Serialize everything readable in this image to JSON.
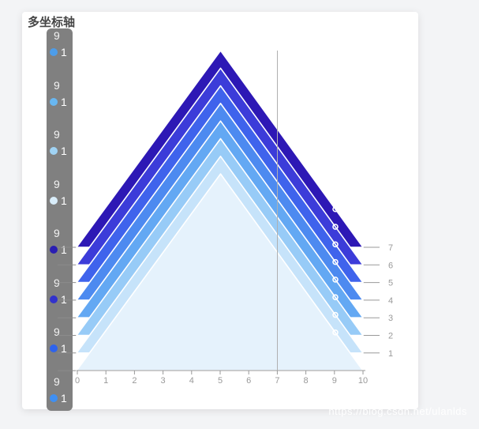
{
  "page": {
    "watermark": "https://blog.csdn.net/ulanlds"
  },
  "title": "多坐标轴",
  "legend": {
    "axis_max_label": "9",
    "items": [
      {
        "name": "1",
        "color": "#4d9de9"
      },
      {
        "name": "1",
        "color": "#68b7f1"
      },
      {
        "name": "1",
        "color": "#a0d3f4"
      },
      {
        "name": "1",
        "color": "#d9edfa"
      },
      {
        "name": "1",
        "color": "#2a1eb2"
      },
      {
        "name": "1",
        "color": "#3232cc"
      },
      {
        "name": "1",
        "color": "#2e63ec"
      },
      {
        "name": "1",
        "color": "#3f8ff2"
      }
    ]
  },
  "chart_data": {
    "type": "area",
    "title": "多坐标轴",
    "x_ticks": [
      "0",
      "1",
      "2",
      "3",
      "4",
      "5",
      "6",
      "7",
      "8",
      "9",
      "10"
    ],
    "xlim": [
      0,
      10
    ],
    "y_max": 9,
    "grid_count": 8,
    "right_axis_labels": [
      "7",
      "6",
      "5",
      "4",
      "3",
      "2",
      "1"
    ],
    "axis_pointer_x": 7,
    "symbol_visible_at_x": 9,
    "series": [
      {
        "name": "1",
        "color": "#2d18b5",
        "data": [
          [
            0,
            0
          ],
          [
            5,
            9
          ],
          [
            10,
            0
          ]
        ]
      },
      {
        "name": "1",
        "color": "#3c3cd9",
        "data": [
          [
            0,
            0
          ],
          [
            5,
            9
          ],
          [
            10,
            0
          ]
        ]
      },
      {
        "name": "1",
        "color": "#3f63ec",
        "data": [
          [
            0,
            0
          ],
          [
            5,
            9
          ],
          [
            10,
            0
          ]
        ]
      },
      {
        "name": "1",
        "color": "#4d8af0",
        "data": [
          [
            0,
            0
          ],
          [
            5,
            9
          ],
          [
            10,
            0
          ]
        ]
      },
      {
        "name": "1",
        "color": "#63a8f3",
        "data": [
          [
            0,
            0
          ],
          [
            5,
            9
          ],
          [
            10,
            0
          ]
        ]
      },
      {
        "name": "1",
        "color": "#97cbf7",
        "data": [
          [
            0,
            0
          ],
          [
            5,
            9
          ],
          [
            10,
            0
          ]
        ]
      },
      {
        "name": "1",
        "color": "#c6e3fa",
        "data": [
          [
            0,
            0
          ],
          [
            5,
            9
          ],
          [
            10,
            0
          ]
        ]
      },
      {
        "name": "1",
        "color": "#e5f2fc",
        "data": [
          [
            0,
            0
          ],
          [
            5,
            9
          ],
          [
            10,
            0
          ]
        ]
      }
    ]
  }
}
